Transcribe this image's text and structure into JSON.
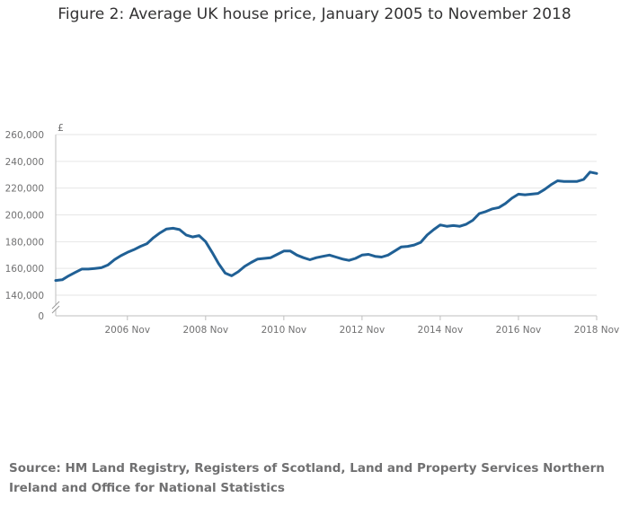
{
  "title": "Figure 2: Average UK house price, January 2005 to November 2018",
  "source": "Source: HM Land Registry, Registers of Scotland, Land and Property Services Northern Ireland and Office for National Statistics",
  "colors": {
    "line": "#206095",
    "grid": "#e6e6e6",
    "text": "#707071"
  },
  "chart_data": {
    "type": "line",
    "title": "Figure 2: Average UK house price, January 2005 to November 2018",
    "ylabel": "£",
    "xlabel": "",
    "ylim": [
      140000,
      260000
    ],
    "y_axis_break": true,
    "y_ticks": [
      0,
      140000,
      160000,
      180000,
      200000,
      220000,
      240000,
      260000
    ],
    "y_tick_labels": [
      "0",
      "140,000",
      "160,000",
      "180,000",
      "200,000",
      "220,000",
      "240,000",
      "260,000"
    ],
    "x_range": [
      "2005-01",
      "2018-11"
    ],
    "x_ticks": [
      "2006-11",
      "2008-11",
      "2010-11",
      "2012-11",
      "2014-11",
      "2016-11",
      "2018-11"
    ],
    "x_tick_labels": [
      "2006 Nov",
      "2008 Nov",
      "2010 Nov",
      "2012 Nov",
      "2014 Nov",
      "2016 Nov",
      "2018 Nov"
    ],
    "grid": true,
    "series": [
      {
        "values": [
          [
            "2005-01",
            151000
          ],
          [
            "2005-03",
            151500
          ],
          [
            "2005-05",
            154500
          ],
          [
            "2005-07",
            157000
          ],
          [
            "2005-09",
            159500
          ],
          [
            "2005-11",
            159500
          ],
          [
            "2006-01",
            160000
          ],
          [
            "2006-03",
            160500
          ],
          [
            "2006-05",
            162500
          ],
          [
            "2006-07",
            166500
          ],
          [
            "2006-09",
            169500
          ],
          [
            "2006-11",
            172000
          ],
          [
            "2007-01",
            174000
          ],
          [
            "2007-03",
            176500
          ],
          [
            "2007-05",
            178500
          ],
          [
            "2007-07",
            183000
          ],
          [
            "2007-09",
            186500
          ],
          [
            "2007-11",
            189500
          ],
          [
            "2008-01",
            190000
          ],
          [
            "2008-03",
            189000
          ],
          [
            "2008-05",
            185000
          ],
          [
            "2008-07",
            183500
          ],
          [
            "2008-09",
            184500
          ],
          [
            "2008-11",
            180000
          ],
          [
            "2009-01",
            172000
          ],
          [
            "2009-03",
            163500
          ],
          [
            "2009-05",
            156500
          ],
          [
            "2009-07",
            154500
          ],
          [
            "2009-09",
            157500
          ],
          [
            "2009-11",
            161500
          ],
          [
            "2010-01",
            164500
          ],
          [
            "2010-03",
            167000
          ],
          [
            "2010-05",
            167500
          ],
          [
            "2010-07",
            168000
          ],
          [
            "2010-09",
            170500
          ],
          [
            "2010-11",
            173000
          ],
          [
            "2011-01",
            173000
          ],
          [
            "2011-03",
            170000
          ],
          [
            "2011-05",
            168000
          ],
          [
            "2011-07",
            166500
          ],
          [
            "2011-09",
            168000
          ],
          [
            "2011-11",
            169000
          ],
          [
            "2012-01",
            170000
          ],
          [
            "2012-03",
            168500
          ],
          [
            "2012-05",
            167000
          ],
          [
            "2012-07",
            166000
          ],
          [
            "2012-09",
            167500
          ],
          [
            "2012-11",
            170000
          ],
          [
            "2013-01",
            170500
          ],
          [
            "2013-03",
            169000
          ],
          [
            "2013-05",
            168500
          ],
          [
            "2013-07",
            170000
          ],
          [
            "2013-09",
            173000
          ],
          [
            "2013-11",
            176000
          ],
          [
            "2014-01",
            176500
          ],
          [
            "2014-03",
            177500
          ],
          [
            "2014-05",
            179500
          ],
          [
            "2014-07",
            185000
          ],
          [
            "2014-09",
            189000
          ],
          [
            "2014-11",
            192500
          ],
          [
            "2015-01",
            191500
          ],
          [
            "2015-03",
            192000
          ],
          [
            "2015-05",
            191500
          ],
          [
            "2015-07",
            193000
          ],
          [
            "2015-09",
            196000
          ],
          [
            "2015-11",
            201000
          ],
          [
            "2016-01",
            202500
          ],
          [
            "2016-03",
            204500
          ],
          [
            "2016-05",
            205500
          ],
          [
            "2016-07",
            208500
          ],
          [
            "2016-09",
            212500
          ],
          [
            "2016-11",
            215500
          ],
          [
            "2017-01",
            215000
          ],
          [
            "2017-03",
            215500
          ],
          [
            "2017-05",
            216000
          ],
          [
            "2017-07",
            219000
          ],
          [
            "2017-09",
            222500
          ],
          [
            "2017-11",
            225500
          ],
          [
            "2018-01",
            225000
          ],
          [
            "2018-03",
            225000
          ],
          [
            "2018-05",
            225000
          ],
          [
            "2018-07",
            226500
          ],
          [
            "2018-09",
            232000
          ],
          [
            "2018-11",
            231000
          ]
        ]
      }
    ]
  }
}
